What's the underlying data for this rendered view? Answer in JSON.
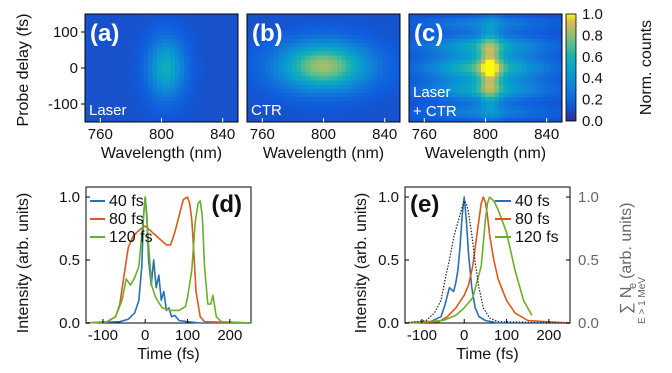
{
  "chart_data": [
    {
      "type": "heatmap",
      "panel": "(a)",
      "annotation": "Laser",
      "xlabel": "Wavelength (nm)",
      "ylabel": "Probe delay (fs)",
      "xlim": [
        750,
        850
      ],
      "ylim": [
        -150,
        150
      ],
      "xticks": [
        760,
        800,
        840
      ],
      "yticks": [
        100,
        0,
        -100
      ],
      "blobs": [
        {
          "x": 803,
          "y": 0,
          "sx": 8,
          "sy": 55,
          "amp": 0.45
        }
      ]
    },
    {
      "type": "heatmap",
      "panel": "(b)",
      "annotation": "CTR",
      "xlabel": "Wavelength (nm)",
      "xlim": [
        750,
        850
      ],
      "ylim": [
        -150,
        150
      ],
      "xticks": [
        760,
        800,
        840
      ],
      "blobs": [
        {
          "x": 800,
          "y": 5,
          "sx": 20,
          "sy": 45,
          "amp": 0.72
        }
      ]
    },
    {
      "type": "heatmap",
      "panel": "(c)",
      "annotation_lines": [
        "Laser",
        "+ CTR"
      ],
      "xlabel": "Wavelength (nm)",
      "xlim": [
        750,
        850
      ],
      "ylim": [
        -150,
        150
      ],
      "xticks": [
        760,
        800,
        840
      ],
      "colorbar": {
        "label": "Norm. counts",
        "ticks": [
          "1.0",
          "0.8",
          "0.6",
          "0.4",
          "0.2",
          "0.0"
        ]
      },
      "blobs": [
        {
          "x": 800,
          "y": 0,
          "sx": 24,
          "sy": 75,
          "amp": 0.5
        },
        {
          "x": 803,
          "y": 0,
          "sx": 5,
          "sy": 80,
          "amp": 0.45
        }
      ]
    },
    {
      "type": "line",
      "panel": "(d)",
      "xlabel": "Time (fs)",
      "ylabel": "Intensity (arb. units)",
      "xlim": [
        -140,
        250
      ],
      "ylim": [
        0,
        1.08
      ],
      "xticks": [
        -100,
        0,
        100,
        200
      ],
      "yticks": [
        "0.0",
        "0.5",
        "1.0"
      ],
      "legend": "top-left",
      "series": [
        {
          "name": "40 fs",
          "color": "#2a6fb5",
          "x": [
            -140,
            -60,
            -40,
            -25,
            -15,
            -8,
            -4,
            0,
            4,
            8,
            14,
            20,
            26,
            32,
            38,
            44,
            50,
            56,
            62,
            70,
            80,
            100,
            130,
            250
          ],
          "y": [
            0,
            0.01,
            0.03,
            0.08,
            0.18,
            0.45,
            0.85,
            1.0,
            0.85,
            0.5,
            0.3,
            0.5,
            0.28,
            0.38,
            0.18,
            0.25,
            0.1,
            0.12,
            0.05,
            0.06,
            0.02,
            0.01,
            0,
            0
          ]
        },
        {
          "name": "80 fs",
          "color": "#d95a1a",
          "x": [
            -140,
            -90,
            -70,
            -60,
            -50,
            -40,
            -30,
            -20,
            -10,
            0,
            10,
            20,
            30,
            40,
            50,
            60,
            70,
            80,
            90,
            100,
            105,
            110,
            115,
            120,
            130,
            140,
            250
          ],
          "y": [
            0,
            0.01,
            0.05,
            0.15,
            0.38,
            0.6,
            0.68,
            0.72,
            0.75,
            0.77,
            0.74,
            0.71,
            0.68,
            0.65,
            0.62,
            0.62,
            0.72,
            0.85,
            0.98,
            1.0,
            0.95,
            0.82,
            0.55,
            0.25,
            0.05,
            0.01,
            0
          ]
        },
        {
          "name": "120 fs",
          "color": "#6ab02b",
          "x": [
            -140,
            -90,
            -70,
            -55,
            -45,
            -35,
            -25,
            -15,
            -8,
            0,
            8,
            15,
            25,
            40,
            60,
            80,
            95,
            100,
            110,
            118,
            125,
            130,
            135,
            140,
            148,
            155,
            160,
            168,
            180,
            250
          ],
          "y": [
            0,
            0.01,
            0.05,
            0.18,
            0.35,
            0.3,
            0.36,
            0.45,
            0.7,
            1.0,
            0.62,
            0.3,
            0.2,
            0.12,
            0.1,
            0.1,
            0.13,
            0.2,
            0.42,
            0.8,
            0.95,
            0.97,
            0.85,
            0.45,
            0.15,
            0.15,
            0.22,
            0.05,
            0.01,
            0
          ]
        }
      ]
    },
    {
      "type": "line",
      "panel": "(e)",
      "xlabel": "Time (fs)",
      "ylabel": "Intensity (arb. units)",
      "y2label_main": "∑ N",
      "y2label_sub_e": "e",
      "y2label_limits": "E > 1 MeV",
      "y2label_rest": "(arb. units)",
      "xlim": [
        -140,
        250
      ],
      "ylim": [
        0,
        1.08
      ],
      "xticks": [
        -100,
        0,
        100,
        200
      ],
      "yticks": [
        "0.0",
        "0.5",
        "1.0"
      ],
      "y2ticks": [
        "0.0",
        "0.5",
        "1.0"
      ],
      "legend": "top-right",
      "series": [
        {
          "name": "40 fs",
          "color": "#2a6fb5",
          "x": [
            -140,
            -80,
            -55,
            -45,
            -35,
            -25,
            -20,
            -15,
            -10,
            -5,
            0,
            5,
            10,
            18,
            26,
            35,
            50,
            80,
            250
          ],
          "y": [
            0,
            0.01,
            0.05,
            0.15,
            0.28,
            0.25,
            0.32,
            0.42,
            0.6,
            0.85,
            1.0,
            0.82,
            0.55,
            0.28,
            0.12,
            0.05,
            0.02,
            0,
            0
          ]
        },
        {
          "name": "80 fs",
          "color": "#d95a1a",
          "x": [
            -140,
            -60,
            -40,
            -20,
            0,
            10,
            20,
            30,
            40,
            45,
            50,
            55,
            60,
            70,
            80,
            100,
            120,
            150,
            250
          ],
          "y": [
            0,
            0.01,
            0.05,
            0.12,
            0.22,
            0.3,
            0.45,
            0.7,
            0.95,
            1.0,
            0.96,
            0.85,
            0.7,
            0.5,
            0.35,
            0.18,
            0.08,
            0.02,
            0
          ]
        },
        {
          "name": "120 fs",
          "color": "#6ab02b",
          "x": [
            -140,
            -50,
            -20,
            0,
            20,
            40,
            50,
            55,
            60,
            70,
            80,
            100,
            120,
            140,
            160
          ],
          "y": [
            0,
            0.02,
            0.06,
            0.12,
            0.2,
            0.45,
            0.82,
            0.95,
            1.0,
            0.97,
            0.9,
            0.72,
            0.42,
            0.18,
            0.06
          ]
        },
        {
          "name": "",
          "color": "#222222",
          "dash": true,
          "x": [
            -140,
            -90,
            -70,
            -55,
            -45,
            -35,
            -25,
            -15,
            -5,
            0,
            5,
            10,
            18,
            26,
            35,
            45,
            60,
            80,
            250
          ],
          "y": [
            0,
            0.02,
            0.08,
            0.18,
            0.35,
            0.5,
            0.68,
            0.8,
            0.92,
            0.97,
            0.95,
            0.88,
            0.7,
            0.48,
            0.28,
            0.12,
            0.04,
            0.01,
            0
          ]
        }
      ]
    }
  ]
}
